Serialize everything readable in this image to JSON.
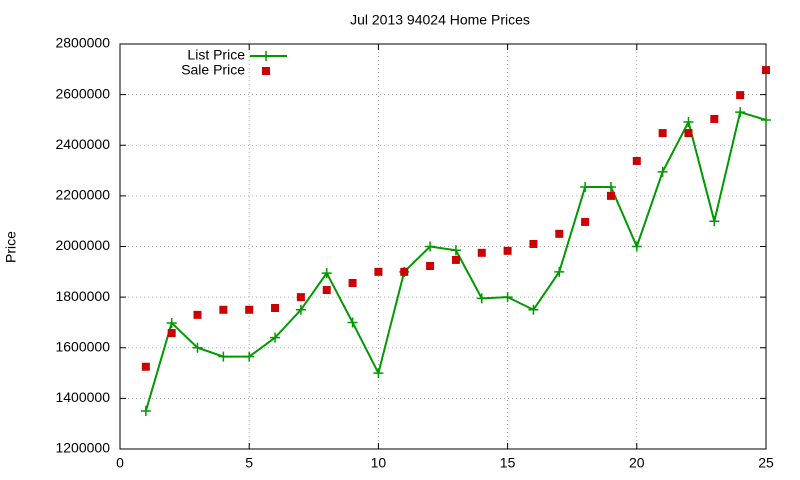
{
  "chart_data": {
    "type": "line",
    "title": "Jul 2013 94024 Home Prices",
    "y_label": "Price",
    "x": [
      1,
      2,
      3,
      4,
      5,
      6,
      7,
      8,
      9,
      10,
      11,
      12,
      13,
      14,
      15,
      16,
      17,
      18,
      19,
      20,
      21,
      22,
      23,
      24,
      25
    ],
    "series": [
      {
        "name": "List Price",
        "color": "#009900",
        "style": "linespoints",
        "values": [
          1350000,
          1698000,
          1600000,
          1565000,
          1565000,
          1640000,
          1750000,
          1895000,
          1700000,
          1500000,
          1900000,
          2000000,
          1985000,
          1795000,
          1800000,
          1750000,
          1900000,
          2235000,
          2235000,
          2000000,
          2295000,
          2492000,
          2100000,
          2531000,
          2500000
        ]
      },
      {
        "name": "Sale Price",
        "color": "#cc0000",
        "style": "points",
        "values": [
          1525000,
          1658000,
          1730000,
          1750000,
          1750000,
          1757000,
          1800000,
          1828000,
          1856000,
          1900000,
          1900000,
          1923000,
          1947000,
          1975000,
          1983000,
          2010000,
          2050000,
          2097000,
          2200000,
          2338000,
          2448000,
          2448000,
          2504000,
          2598000,
          2697000
        ]
      }
    ],
    "xlim": [
      0,
      25
    ],
    "xticks": [
      0,
      5,
      10,
      15,
      20,
      25
    ],
    "ylim": [
      1200000,
      2800000
    ],
    "yticks": [
      1200000,
      1400000,
      1600000,
      1800000,
      2000000,
      2200000,
      2400000,
      2600000,
      2800000
    ],
    "grid": true,
    "legend": "top-left"
  }
}
